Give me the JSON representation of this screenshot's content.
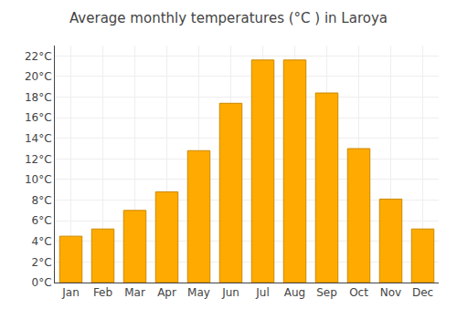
{
  "chart_data": {
    "type": "bar",
    "title": "Average monthly temperatures (°C ) in Laroya",
    "categories": [
      "Jan",
      "Feb",
      "Mar",
      "Apr",
      "May",
      "Jun",
      "Jul",
      "Aug",
      "Sep",
      "Oct",
      "Nov",
      "Dec"
    ],
    "values": [
      4.5,
      5.2,
      7.0,
      8.8,
      12.8,
      17.4,
      21.6,
      21.6,
      18.4,
      13.0,
      8.1,
      5.2
    ],
    "color": "#FFAA00",
    "ylim": [
      0,
      23
    ],
    "yticks": [
      {
        "value": 0,
        "label": "0°C"
      },
      {
        "value": 2,
        "label": "2°C"
      },
      {
        "value": 4,
        "label": "4°C"
      },
      {
        "value": 6,
        "label": "6°C"
      },
      {
        "value": 8,
        "label": "8°C"
      },
      {
        "value": 10,
        "label": "10°C"
      },
      {
        "value": 12,
        "label": "12°C"
      },
      {
        "value": 14,
        "label": "14°C"
      },
      {
        "value": 16,
        "label": "16°C"
      },
      {
        "value": 18,
        "label": "18°C"
      },
      {
        "value": 20,
        "label": "20°C"
      },
      {
        "value": 22,
        "label": "22°C"
      }
    ],
    "grid": true
  }
}
